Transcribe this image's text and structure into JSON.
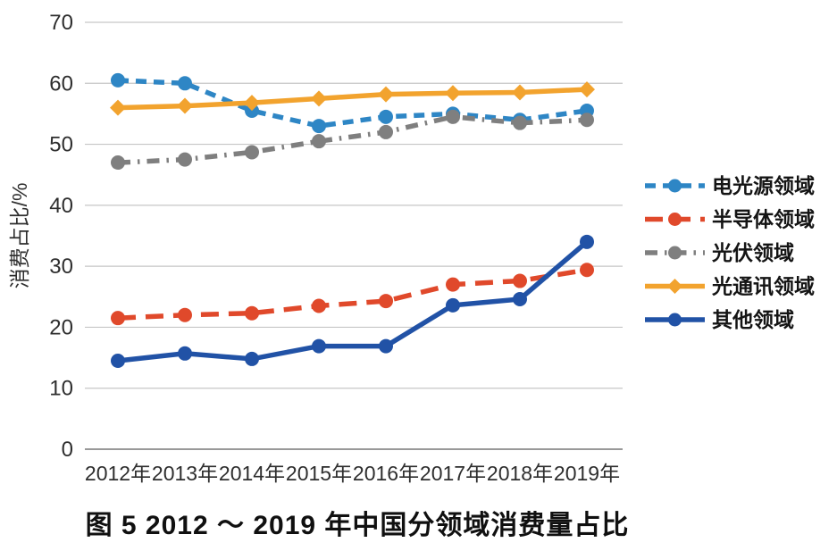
{
  "figure": {
    "caption": "图 5  2012 ～ 2019 年中国分领域消费量占比"
  },
  "chart_data": {
    "type": "line",
    "title": "",
    "xlabel": "",
    "ylabel": "消费占比/%",
    "ylim": [
      0,
      70
    ],
    "yticks": [
      0,
      10,
      20,
      30,
      40,
      50,
      60,
      70
    ],
    "grid": true,
    "legend_position": "right",
    "categories": [
      "2012年",
      "2013年",
      "2014年",
      "2015年",
      "2016年",
      "2017年",
      "2018年",
      "2019年"
    ],
    "series": [
      {
        "name": "电光源领域",
        "color": "#2E86C5",
        "line_style": "dashed",
        "marker": "circle",
        "values": [
          60.5,
          60,
          55.5,
          53,
          54.5,
          55,
          54,
          55.5
        ]
      },
      {
        "name": "半导体领域",
        "color": "#E0492B",
        "line_style": "long-dashed",
        "marker": "circle",
        "values": [
          21.5,
          22,
          22.3,
          23.5,
          24.3,
          27,
          27.6,
          29.4
        ]
      },
      {
        "name": "光伏领域",
        "color": "#7F7F7F",
        "line_style": "dash-dot",
        "marker": "circle",
        "values": [
          47,
          47.5,
          48.7,
          50.5,
          52,
          54.5,
          53.5,
          54
        ]
      },
      {
        "name": "光通讯领域",
        "color": "#F2A32E",
        "line_style": "solid",
        "marker": "diamond",
        "values": [
          56,
          56.3,
          56.8,
          57.5,
          58.2,
          58.4,
          58.5,
          59
        ]
      },
      {
        "name": "其他领域",
        "color": "#2152A6",
        "line_style": "solid",
        "marker": "circle",
        "values": [
          14.5,
          15.7,
          14.8,
          16.9,
          16.9,
          23.6,
          24.6,
          34
        ]
      }
    ],
    "style": {
      "grid_color": "#C6C6C6",
      "axis_color": "#999999",
      "tick_color": "#2e2e2e"
    }
  }
}
